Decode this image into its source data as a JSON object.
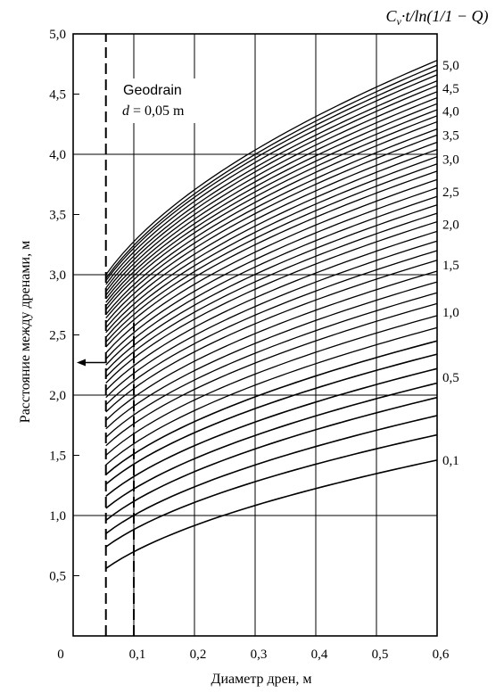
{
  "chart_data": {
    "type": "line",
    "xlabel": "Диаметр дрен, м",
    "ylabel": "Расстояние между дренами, м",
    "xlim": [
      0,
      0.6
    ],
    "ylim": [
      0,
      5.0
    ],
    "x_ticks": [
      {
        "value": 0,
        "label": "0"
      },
      {
        "value": 0.1,
        "label": "0,1"
      },
      {
        "value": 0.2,
        "label": "0,2"
      },
      {
        "value": 0.3,
        "label": "0,3"
      },
      {
        "value": 0.4,
        "label": "0,4"
      },
      {
        "value": 0.5,
        "label": "0,5"
      },
      {
        "value": 0.6,
        "label": "0,6"
      }
    ],
    "y_ticks": [
      {
        "value": 0.5,
        "label": "0,5"
      },
      {
        "value": 1.0,
        "label": "1,0"
      },
      {
        "value": 1.5,
        "label": "1,5"
      },
      {
        "value": 2.0,
        "label": "2,0"
      },
      {
        "value": 2.5,
        "label": "2,5"
      },
      {
        "value": 3.0,
        "label": "3,0"
      },
      {
        "value": 3.5,
        "label": "3,5"
      },
      {
        "value": 4.0,
        "label": "4,0"
      },
      {
        "value": 4.5,
        "label": "4,5"
      },
      {
        "value": 5.0,
        "label": "5,0"
      }
    ],
    "grid": true,
    "parameter_title": {
      "symbol": "C",
      "subscript": "v",
      "rest": "·t/ln(1/1 − Q)"
    },
    "curve_labels": [
      {
        "label": "5,0",
        "y": 4.74
      },
      {
        "label": "4,5",
        "y": 4.55
      },
      {
        "label": "4,0",
        "y": 4.36
      },
      {
        "label": "3,5",
        "y": 4.16
      },
      {
        "label": "3,0",
        "y": 3.96
      },
      {
        "label": "2,5",
        "y": 3.69
      },
      {
        "label": "2,0",
        "y": 3.42
      },
      {
        "label": "1,5",
        "y": 3.08
      },
      {
        "label": "1,0",
        "y": 2.69
      },
      {
        "label": "0,5",
        "y": 2.15
      },
      {
        "label": "0,1",
        "y": 1.46
      }
    ],
    "curves": {
      "x_start": 0.054,
      "x_end": 0.6,
      "shape": "power",
      "exponent": 0.5,
      "start_values": [
        0.56,
        0.74,
        0.85,
        0.96,
        1.06,
        1.16,
        1.26,
        1.34,
        1.42,
        1.5,
        1.58,
        1.65,
        1.72,
        1.79,
        1.86,
        1.92,
        1.98,
        2.04,
        2.1,
        2.15,
        2.2,
        2.25,
        2.3,
        2.35,
        2.4,
        2.44,
        2.48,
        2.52,
        2.56,
        2.6,
        2.64,
        2.67,
        2.71,
        2.74,
        2.77,
        2.8,
        2.83,
        2.86,
        2.89,
        2.92,
        2.95,
        2.97,
        3.0
      ],
      "end_values": [
        1.46,
        1.67,
        1.83,
        1.98,
        2.1,
        2.22,
        2.34,
        2.45,
        2.56,
        2.66,
        2.76,
        2.85,
        2.94,
        3.03,
        3.12,
        3.2,
        3.28,
        3.36,
        3.44,
        3.51,
        3.58,
        3.65,
        3.72,
        3.79,
        3.86,
        3.92,
        3.98,
        4.04,
        4.1,
        4.16,
        4.21,
        4.27,
        4.32,
        4.37,
        4.42,
        4.47,
        4.52,
        4.57,
        4.61,
        4.66,
        4.7,
        4.74,
        4.78
      ]
    },
    "annotations": [
      {
        "type": "vline",
        "x": 0.054,
        "style": "dashed",
        "text": "Geodrain",
        "text2_italic": "d",
        "text2": " = 0,05 m"
      },
      {
        "type": "vline",
        "x": 0.1,
        "style": "dashed",
        "from_y": 0,
        "to_y": 2.6
      },
      {
        "type": "arrow",
        "from_x": 0.054,
        "to_x": 0.0,
        "y": 2.27
      }
    ]
  }
}
